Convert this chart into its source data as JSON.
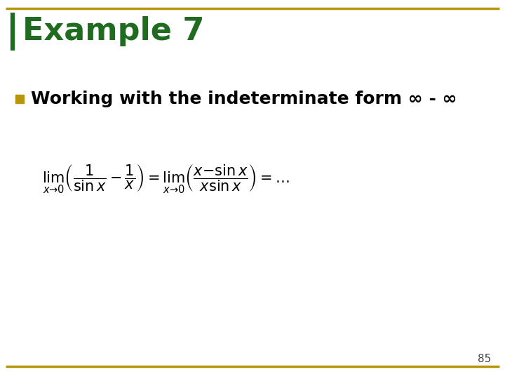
{
  "title": "Example 7",
  "title_color": "#1F6B1F",
  "title_fontsize": 32,
  "bullet_text": "Working with the indeterminate form ∞ - ∞",
  "bullet_fontsize": 18,
  "bullet_color": "#000000",
  "bullet_square_color": "#B8960C",
  "formula_color": "#000000",
  "background_color": "#FFFFFF",
  "page_number": "85",
  "page_number_color": "#444444",
  "border_color": "#B8960C",
  "left_bar_color": "#1F6B1F",
  "formula": "$\\lim_{x \\to 0}\\left(\\dfrac{1}{\\sin x} - \\dfrac{1}{x}\\right) = \\lim_{x \\to 0}\\left(\\dfrac{x - \\sin x}{x \\sin x}\\right) = \\ldots$",
  "formula_fontsize": 15
}
